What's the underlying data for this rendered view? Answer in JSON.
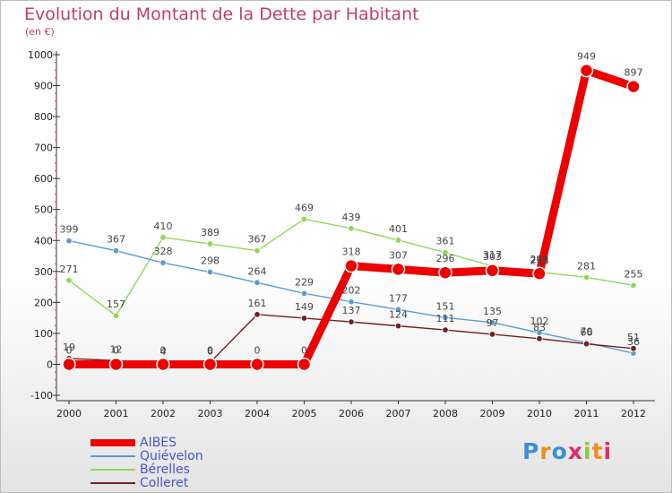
{
  "title": "Evolution du Montant de la Dette par Habitant",
  "subtitle": "(en €)",
  "logo": "Proxiti",
  "chart_data": {
    "type": "line",
    "title": "Evolution du Montant de la Dette par Habitant",
    "ylabel": "(en €)",
    "x": [
      "2000",
      "2001",
      "2002",
      "2003",
      "2004",
      "2005",
      "2006",
      "2007",
      "2008",
      "2009",
      "2010",
      "2011",
      "2012"
    ],
    "ylim": [
      -100,
      1000
    ],
    "yticks": [
      -100,
      0,
      100,
      200,
      300,
      400,
      500,
      600,
      700,
      800,
      900,
      1000
    ],
    "grid": false,
    "legend_position": "bottom-left",
    "series": [
      {
        "name": "AIBES",
        "color": "#ee0000",
        "values": [
          0,
          0,
          0,
          0,
          0,
          0,
          318,
          307,
          296,
          303,
          293,
          949,
          897
        ]
      },
      {
        "name": "Quiévelon",
        "color": "#5b9bd5",
        "values": [
          399,
          367,
          328,
          298,
          264,
          229,
          202,
          177,
          151,
          135,
          102,
          70,
          36
        ]
      },
      {
        "name": "Bérelles",
        "color": "#8ed85a",
        "values": [
          271,
          157,
          410,
          389,
          367,
          469,
          439,
          401,
          361,
          317,
          298,
          281,
          255
        ]
      },
      {
        "name": "Colleret",
        "color": "#702020",
        "values": [
          19,
          12,
          4,
          6,
          161,
          149,
          137,
          124,
          111,
          97,
          83,
          66,
          51
        ]
      }
    ]
  }
}
